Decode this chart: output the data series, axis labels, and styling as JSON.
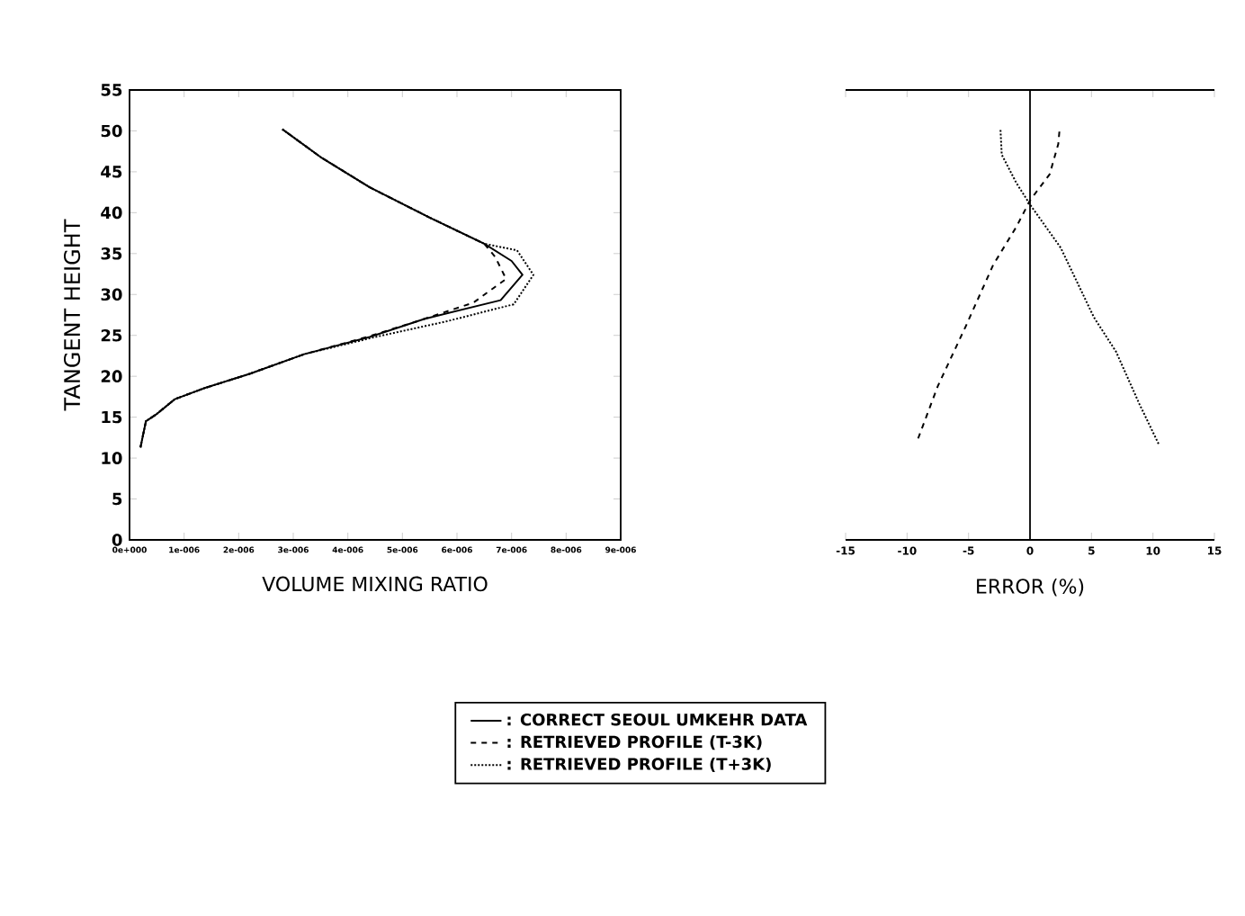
{
  "chart_data": [
    {
      "type": "line",
      "xlabel": "VOLUME MIXING RATIO",
      "ylabel": "TANGENT HEIGHT",
      "xlim": [
        0,
        9e-06
      ],
      "ylim": [
        0,
        55
      ],
      "xticks": [
        {
          "value": 0,
          "label": "0e+000"
        },
        {
          "value": 1e-06,
          "label": "1e-006"
        },
        {
          "value": 2e-06,
          "label": "2e-006"
        },
        {
          "value": 3e-06,
          "label": "3e-006"
        },
        {
          "value": 4e-06,
          "label": "4e-006"
        },
        {
          "value": 5e-06,
          "label": "5e-006"
        },
        {
          "value": 6e-06,
          "label": "6e-006"
        },
        {
          "value": 7e-06,
          "label": "7e-006"
        },
        {
          "value": 8e-06,
          "label": "8e-006"
        },
        {
          "value": 9e-06,
          "label": "9e-006"
        }
      ],
      "yticks": [
        0,
        5,
        10,
        15,
        20,
        25,
        30,
        35,
        40,
        45,
        50,
        55
      ],
      "legend": "bottom",
      "series": [
        {
          "name": ": CORRECT SEOUL UMKEHR DATA",
          "color": "#000000",
          "line_style": "solid",
          "x": [
            2e-07,
            3e-07,
            4.8e-07,
            8.3e-07,
            1.35e-06,
            2.2e-06,
            3.2e-06,
            4.4e-06,
            5.4e-06,
            6.8e-06,
            7.2e-06,
            7e-06,
            6.5e-06,
            5.5e-06,
            4.4e-06,
            3.5e-06,
            2.8e-06
          ],
          "values": [
            11.3,
            14.5,
            15.3,
            17.2,
            18.5,
            20.3,
            22.7,
            24.8,
            27,
            29.3,
            32.4,
            34.1,
            36.2,
            39.4,
            43.1,
            46.8,
            50.2
          ]
        },
        {
          "name": ": RETRIEVED PROFILE (T-3K)",
          "color": "#000000",
          "line_style": "dashed",
          "x": [
            2e-07,
            3e-07,
            4.8e-07,
            8.3e-07,
            1.35e-06,
            2.2e-06,
            3.2e-06,
            4.35e-06,
            5.26e-06,
            6.3e-06,
            6.9e-06,
            6.7e-06,
            6.5e-06,
            5.5e-06,
            4.4e-06,
            3.5e-06,
            2.8e-06
          ],
          "values": [
            11.3,
            14.5,
            15.3,
            17.2,
            18.5,
            20.3,
            22.7,
            24.8,
            26.7,
            29,
            31.9,
            34.6,
            36.2,
            39.4,
            43.1,
            46.8,
            50.2
          ]
        },
        {
          "name": ": RETRIEVED PROFILE (T+3K)",
          "color": "#000000",
          "line_style": "dotted",
          "x": [
            2e-07,
            3e-07,
            4.8e-07,
            8.3e-07,
            1.35e-06,
            2.2e-06,
            3.2e-06,
            4.5e-06,
            5.8e-06,
            7.04e-06,
            7.4e-06,
            7.1e-06,
            6.5e-06,
            5.5e-06,
            4.4e-06,
            3.5e-06,
            2.8e-06
          ],
          "values": [
            11.3,
            14.5,
            15.3,
            17.2,
            18.5,
            20.3,
            22.7,
            24.8,
            26.7,
            28.8,
            32.4,
            35.4,
            36.2,
            39.4,
            43.1,
            46.8,
            50.2
          ]
        }
      ]
    },
    {
      "type": "line",
      "xlabel": "ERROR (%)",
      "xlim": [
        -15,
        15
      ],
      "ylim": [
        0,
        55
      ],
      "xticks": [
        -15,
        -10,
        -5,
        0,
        5,
        10,
        15
      ],
      "yticks": [
        0,
        5,
        10,
        15,
        20,
        25,
        30,
        35,
        40,
        45,
        50,
        55
      ],
      "tick_labels": "x",
      "ref_lines": [
        {
          "axis": "x",
          "value": 0,
          "color": "#000000",
          "line_style": "solid"
        }
      ],
      "series": [
        {
          "color": "#000000",
          "line_style": "dashed",
          "x": [
            -9.1,
            -7.5,
            -5.2,
            -3,
            -1.1,
            0,
            1.6,
            2.3,
            2.4
          ],
          "values": [
            12.4,
            18.8,
            26.2,
            33.6,
            38.3,
            41.5,
            44.7,
            48.4,
            50.1
          ]
        },
        {
          "color": "#000000",
          "line_style": "dotted",
          "x": [
            -2.4,
            -2.3,
            -1.1,
            0,
            2.5,
            5.2,
            7,
            8.9,
            10.5
          ],
          "values": [
            50.1,
            47.1,
            43.6,
            41,
            35.7,
            27.2,
            23,
            16.6,
            11.6
          ]
        }
      ]
    }
  ]
}
